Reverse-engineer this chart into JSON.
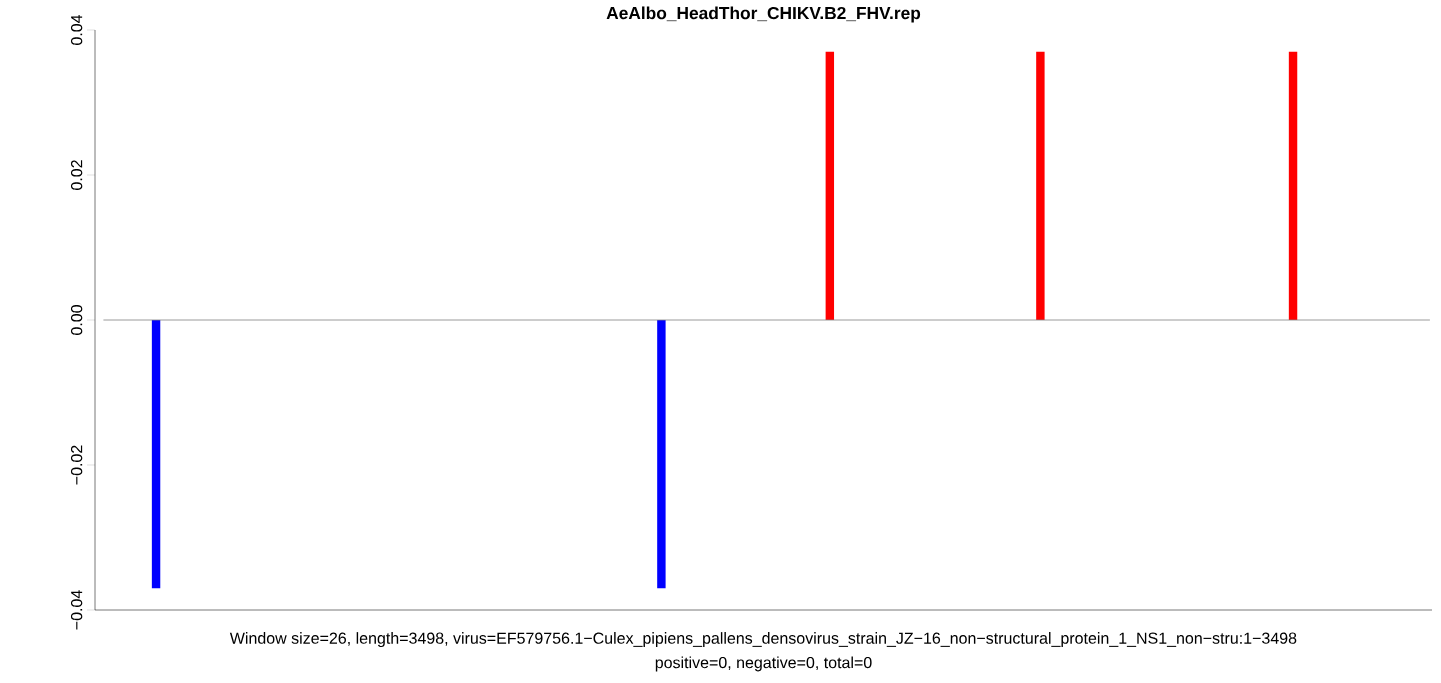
{
  "chart_data": {
    "type": "bar",
    "title": "AeAlbo_HeadThor_CHIKV.B2_FHV.rep",
    "categories": [
      null,
      null,
      null,
      null,
      null,
      null,
      null,
      null,
      null,
      null,
      null,
      null,
      null,
      null,
      null,
      null,
      null,
      null,
      null,
      null,
      null,
      null,
      null,
      null,
      null,
      null,
      null,
      null,
      null,
      null,
      null,
      null,
      null,
      null,
      null,
      null,
      null,
      null,
      null,
      null,
      null,
      null,
      null,
      null,
      null,
      null,
      null,
      null,
      null,
      null,
      null,
      null,
      null,
      null,
      null,
      null,
      null,
      null,
      null,
      null,
      null,
      null,
      null
    ],
    "values": [
      null,
      null,
      -0.037,
      null,
      null,
      null,
      null,
      null,
      null,
      null,
      null,
      null,
      null,
      null,
      null,
      null,
      null,
      null,
      null,
      null,
      null,
      null,
      null,
      null,
      null,
      null,
      -0.037,
      null,
      null,
      null,
      null,
      null,
      null,
      null,
      0.037,
      null,
      null,
      null,
      null,
      null,
      null,
      null,
      null,
      null,
      0.037,
      null,
      null,
      null,
      null,
      null,
      null,
      null,
      null,
      null,
      null,
      null,
      0.037,
      null,
      null,
      null,
      null,
      null,
      null
    ],
    "colors": [
      "#0000ff",
      "#0000ff",
      "#0000ff",
      "#0000ff",
      "#0000ff",
      "#0000ff",
      "#0000ff",
      "#0000ff",
      "#0000ff",
      "#0000ff",
      "#0000ff",
      "#0000ff",
      "#0000ff",
      "#0000ff",
      "#0000ff",
      "#0000ff",
      "#0000ff",
      "#0000ff",
      "#0000ff",
      "#0000ff",
      "#0000ff",
      "#0000ff",
      "#0000ff",
      "#0000ff",
      "#0000ff",
      "#0000ff",
      "#0000ff",
      "#0000ff",
      "#0000ff",
      "#0000ff",
      "#0000ff",
      "#0000ff",
      "#0000ff",
      "#0000ff",
      "#ff0000",
      "#ff0000",
      "#ff0000",
      "#ff0000",
      "#ff0000",
      "#ff0000",
      "#ff0000",
      "#ff0000",
      "#ff0000",
      "#ff0000",
      "#ff0000",
      "#ff0000",
      "#ff0000",
      "#ff0000",
      "#ff0000",
      "#ff0000",
      "#ff0000",
      "#ff0000",
      "#ff0000",
      "#ff0000",
      "#ff0000",
      "#ff0000",
      "#ff0000",
      "#ff0000",
      "#ff0000",
      "#ff0000",
      "#ff0000",
      "#ff0000",
      "#ff0000"
    ],
    "ylim": [
      -0.04,
      0.04
    ],
    "yticks": [
      {
        "value": -0.04,
        "label": "−0.04"
      },
      {
        "value": -0.02,
        "label": "−0.02"
      },
      {
        "value": 0,
        "label": "0.00"
      },
      {
        "value": 0.02,
        "label": "0.02"
      },
      {
        "value": 0.04,
        "label": "0.04"
      }
    ],
    "tick_labels": "y",
    "ref_lines": [
      {
        "axis": "y",
        "value": 0,
        "color": "#808080"
      }
    ],
    "annotations": [
      "Window size=26, length=3498, virus=EF579756.1−Culex_pipiens_pallens_densovirus_strain_JZ−16_non−structural_protein_1_NS1_non−stru:1−3498",
      "positive=0, negative=0, total=0"
    ]
  }
}
